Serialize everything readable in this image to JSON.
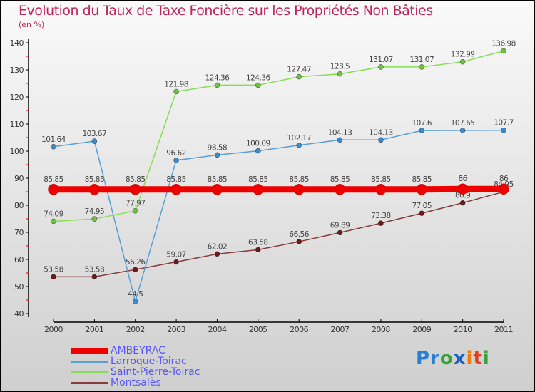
{
  "chart_data": {
    "type": "line",
    "title": "Evolution du Taux de Taxe Foncière sur les Propriétés Non Bâties",
    "subtitle": "(en %)",
    "x": [
      "2000",
      "2001",
      "2002",
      "2003",
      "2004",
      "2005",
      "2006",
      "2007",
      "2008",
      "2009",
      "2010",
      "2011"
    ],
    "ylim": [
      40,
      140
    ],
    "yticks": [
      "40",
      "50",
      "60",
      "70",
      "80",
      "90",
      "100",
      "110",
      "120",
      "130",
      "140"
    ],
    "legend_position": "bottom-left",
    "series": [
      {
        "name": "AMBEYRAC",
        "color": "#ee0000",
        "values": [
          85.85,
          85.85,
          85.85,
          85.85,
          85.85,
          85.85,
          85.85,
          85.85,
          85.85,
          85.85,
          86,
          86
        ],
        "labels": [
          "85.85",
          "85.85",
          "85.85",
          "85.85",
          "85.85",
          "85.85",
          "85.85",
          "85.85",
          "85.85",
          "85.85",
          "86",
          "86"
        ]
      },
      {
        "name": "Larroque-Toirac",
        "color": "#5a9fd4",
        "dot": "#3a8ad0",
        "values": [
          101.64,
          103.67,
          44.5,
          96.62,
          98.58,
          100.09,
          102.17,
          104.13,
          104.13,
          107.6,
          107.65,
          107.7
        ],
        "labels": [
          "101.64",
          "103.67",
          "44.5",
          "96.62",
          "98.58",
          "100.09",
          "102.17",
          "104.13",
          "104.13",
          "107.6",
          "107.65",
          "107.7"
        ]
      },
      {
        "name": "Saint-Pierre-Toirac",
        "color": "#88dd55",
        "dot": "#6cc43c",
        "values": [
          74.09,
          74.95,
          77.97,
          121.98,
          124.36,
          124.36,
          127.47,
          128.5,
          131.07,
          131.07,
          132.99,
          136.98
        ],
        "labels": [
          "74.09",
          "74.95",
          "77.97",
          "121.98",
          "124.36",
          "124.36",
          "127.47",
          "128.5",
          "131.07",
          "131.07",
          "132.99",
          "136.98"
        ]
      },
      {
        "name": "Montsalès",
        "color": "#8a3a3a",
        "dot": "#6a1a1a",
        "values": [
          53.58,
          53.58,
          56.26,
          59.07,
          62.02,
          63.58,
          66.56,
          69.89,
          73.38,
          77.05,
          80.9,
          84.95
        ],
        "labels": [
          "53.58",
          "53.58",
          "56.26",
          "59.07",
          "62.02",
          "63.58",
          "66.56",
          "69.89",
          "73.38",
          "77.05",
          "80.9",
          "84.95"
        ]
      }
    ]
  },
  "logo": {
    "text": "Proxiti"
  }
}
